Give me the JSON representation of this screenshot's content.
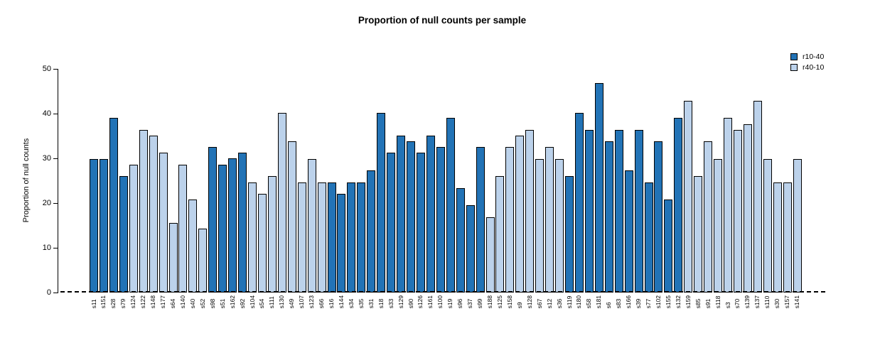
{
  "chart_data": {
    "type": "bar",
    "title": "Proportion of null counts per sample",
    "xlabel": "",
    "ylabel": "Proportion of null counts",
    "ylim": [
      0,
      50
    ],
    "yticks": [
      0,
      10,
      20,
      30,
      40,
      50
    ],
    "grid": false,
    "legend_position": "top-right",
    "zero_line_style": "dashed",
    "legend": [
      {
        "label": "r10-40",
        "color": "#2273B6"
      },
      {
        "label": "r40-10",
        "color": "#BCD2EB"
      }
    ],
    "series_colors": {
      "r10-40": "#2273B6",
      "r40-10": "#BCD2EB"
    },
    "bars": [
      {
        "label": "s11",
        "value": 29.8,
        "series": "r10-40"
      },
      {
        "label": "s151",
        "value": 29.8,
        "series": "r10-40"
      },
      {
        "label": "s28",
        "value": 39.0,
        "series": "r10-40"
      },
      {
        "label": "s79",
        "value": 26.0,
        "series": "r10-40"
      },
      {
        "label": "s124",
        "value": 28.5,
        "series": "r40-10"
      },
      {
        "label": "s122",
        "value": 36.4,
        "series": "r40-10"
      },
      {
        "label": "s148",
        "value": 35.0,
        "series": "r40-10"
      },
      {
        "label": "s177",
        "value": 31.3,
        "series": "r40-10"
      },
      {
        "label": "s64",
        "value": 15.6,
        "series": "r40-10"
      },
      {
        "label": "s140",
        "value": 28.5,
        "series": "r40-10"
      },
      {
        "label": "s40",
        "value": 20.8,
        "series": "r40-10"
      },
      {
        "label": "s52",
        "value": 14.3,
        "series": "r40-10"
      },
      {
        "label": "s98",
        "value": 32.5,
        "series": "r10-40"
      },
      {
        "label": "s51",
        "value": 28.6,
        "series": "r10-40"
      },
      {
        "label": "s162",
        "value": 30.0,
        "series": "r10-40"
      },
      {
        "label": "s92",
        "value": 31.3,
        "series": "r10-40"
      },
      {
        "label": "s104",
        "value": 24.6,
        "series": "r40-10"
      },
      {
        "label": "s54",
        "value": 22.1,
        "series": "r40-10"
      },
      {
        "label": "s111",
        "value": 26.0,
        "series": "r40-10"
      },
      {
        "label": "s130",
        "value": 40.2,
        "series": "r40-10"
      },
      {
        "label": "s49",
        "value": 33.8,
        "series": "r40-10"
      },
      {
        "label": "s107",
        "value": 24.6,
        "series": "r40-10"
      },
      {
        "label": "s123",
        "value": 29.8,
        "series": "r40-10"
      },
      {
        "label": "s66",
        "value": 24.6,
        "series": "r40-10"
      },
      {
        "label": "s16",
        "value": 24.6,
        "series": "r10-40"
      },
      {
        "label": "s144",
        "value": 22.1,
        "series": "r10-40"
      },
      {
        "label": "s34",
        "value": 24.6,
        "series": "r10-40"
      },
      {
        "label": "s35",
        "value": 24.6,
        "series": "r10-40"
      },
      {
        "label": "s31",
        "value": 27.3,
        "series": "r10-40"
      },
      {
        "label": "s18",
        "value": 40.2,
        "series": "r10-40"
      },
      {
        "label": "s33",
        "value": 31.3,
        "series": "r10-40"
      },
      {
        "label": "s129",
        "value": 35.0,
        "series": "r10-40"
      },
      {
        "label": "s90",
        "value": 33.8,
        "series": "r10-40"
      },
      {
        "label": "s126",
        "value": 31.3,
        "series": "r10-40"
      },
      {
        "label": "s161",
        "value": 35.0,
        "series": "r10-40"
      },
      {
        "label": "s100",
        "value": 32.5,
        "series": "r10-40"
      },
      {
        "label": "s19",
        "value": 39.0,
        "series": "r10-40"
      },
      {
        "label": "s96",
        "value": 23.3,
        "series": "r10-40"
      },
      {
        "label": "s37",
        "value": 19.5,
        "series": "r10-40"
      },
      {
        "label": "s99",
        "value": 32.5,
        "series": "r10-40"
      },
      {
        "label": "s188",
        "value": 16.9,
        "series": "r40-10"
      },
      {
        "label": "s125",
        "value": 26.0,
        "series": "r40-10"
      },
      {
        "label": "s158",
        "value": 32.5,
        "series": "r40-10"
      },
      {
        "label": "s9",
        "value": 35.0,
        "series": "r40-10"
      },
      {
        "label": "s128",
        "value": 36.4,
        "series": "r40-10"
      },
      {
        "label": "s67",
        "value": 29.8,
        "series": "r40-10"
      },
      {
        "label": "s12",
        "value": 32.5,
        "series": "r40-10"
      },
      {
        "label": "s36",
        "value": 29.8,
        "series": "r40-10"
      },
      {
        "label": "s119",
        "value": 26.0,
        "series": "r10-40"
      },
      {
        "label": "s180",
        "value": 40.2,
        "series": "r10-40"
      },
      {
        "label": "s58",
        "value": 36.4,
        "series": "r10-40"
      },
      {
        "label": "s181",
        "value": 46.8,
        "series": "r10-40"
      },
      {
        "label": "s6",
        "value": 33.8,
        "series": "r10-40"
      },
      {
        "label": "s83",
        "value": 36.4,
        "series": "r10-40"
      },
      {
        "label": "s166",
        "value": 27.3,
        "series": "r10-40"
      },
      {
        "label": "s39",
        "value": 36.4,
        "series": "r10-40"
      },
      {
        "label": "s77",
        "value": 24.6,
        "series": "r10-40"
      },
      {
        "label": "s102",
        "value": 33.8,
        "series": "r10-40"
      },
      {
        "label": "s155",
        "value": 20.8,
        "series": "r10-40"
      },
      {
        "label": "s132",
        "value": 39.0,
        "series": "r10-40"
      },
      {
        "label": "s159",
        "value": 42.9,
        "series": "r40-10"
      },
      {
        "label": "s85",
        "value": 26.0,
        "series": "r40-10"
      },
      {
        "label": "s91",
        "value": 33.8,
        "series": "r40-10"
      },
      {
        "label": "s118",
        "value": 29.8,
        "series": "r40-10"
      },
      {
        "label": "s3",
        "value": 39.0,
        "series": "r40-10"
      },
      {
        "label": "s70",
        "value": 36.4,
        "series": "r40-10"
      },
      {
        "label": "s139",
        "value": 37.6,
        "series": "r40-10"
      },
      {
        "label": "s137",
        "value": 42.9,
        "series": "r40-10"
      },
      {
        "label": "s110",
        "value": 29.8,
        "series": "r40-10"
      },
      {
        "label": "s30",
        "value": 24.6,
        "series": "r40-10"
      },
      {
        "label": "s157",
        "value": 24.6,
        "series": "r40-10"
      },
      {
        "label": "s141",
        "value": 29.8,
        "series": "r40-10"
      }
    ]
  }
}
